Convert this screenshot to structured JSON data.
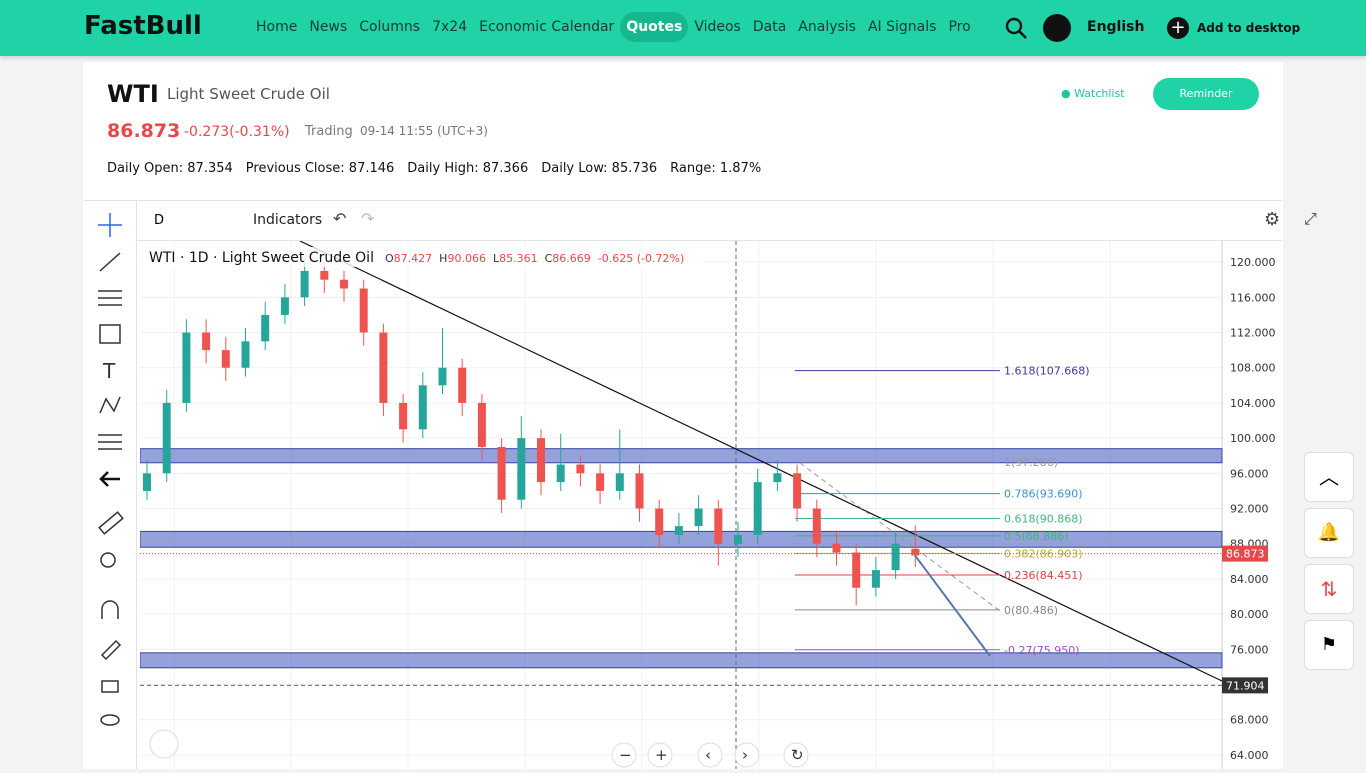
{
  "nav": {
    "logo": "FastBull",
    "items": [
      "Home",
      "News",
      "Columns",
      "7x24",
      "Economic Calendar",
      "Quotes",
      "Videos",
      "Data",
      "Analysis",
      "AI Signals",
      "Pro"
    ],
    "active": 5,
    "language": "English",
    "add": "Add to desktop"
  },
  "header": {
    "symbol": "WTI",
    "name": "Light Sweet Crude Oil",
    "price": "86.873",
    "change": "-0.273(-0.31%)",
    "status": "Trading",
    "time": "09-14 11:55 (UTC+3)",
    "watchlist": "Watchlist",
    "reminder": "Reminder",
    "stats": [
      {
        "label": "Daily Open:",
        "value": "87.354"
      },
      {
        "label": "Previous Close:",
        "value": "87.146"
      },
      {
        "label": "Daily High:",
        "value": "87.366"
      },
      {
        "label": "Daily Low:",
        "value": "85.736"
      },
      {
        "label": "Range:",
        "value": "1.87%"
      }
    ]
  },
  "toolbar": {
    "interval": "D",
    "indicators": "Indicators"
  },
  "chart_data": {
    "type": "candlestick",
    "legend_title": "WTI · 1D · Light Sweet Crude Oil",
    "ohlc_keys": [
      "O",
      "H",
      "L",
      "C"
    ],
    "change_label": "-0.625 (-0.72%)",
    "up_color": "#26a69a",
    "down_color": "#ef5350",
    "candles": [
      [
        94,
        97.5,
        93,
        96
      ],
      [
        96,
        105.5,
        95,
        104
      ],
      [
        104,
        113.5,
        103,
        112
      ],
      [
        112,
        113.5,
        108.5,
        110
      ],
      [
        110,
        111.5,
        106.5,
        108
      ],
      [
        108,
        112.5,
        107,
        111
      ],
      [
        111,
        115.5,
        110,
        114
      ],
      [
        114,
        117.5,
        113,
        116
      ],
      [
        116,
        120.5,
        115,
        119
      ],
      [
        119,
        120,
        116.5,
        118
      ],
      [
        118,
        119,
        115.5,
        117
      ],
      [
        117,
        118,
        110.5,
        112
      ],
      [
        112,
        113,
        102.5,
        104
      ],
      [
        104,
        105,
        99.5,
        101
      ],
      [
        101,
        107.5,
        100,
        106
      ],
      [
        106,
        112.5,
        105,
        108
      ],
      [
        108,
        109,
        102.5,
        104
      ],
      [
        104,
        105,
        97.5,
        99
      ],
      [
        99,
        100,
        91.5,
        93
      ],
      [
        93,
        102.5,
        92,
        100
      ],
      [
        100,
        101,
        93.5,
        95
      ],
      [
        95,
        100.5,
        94,
        97
      ],
      [
        97,
        98,
        94.5,
        96
      ],
      [
        96,
        97,
        92.5,
        94
      ],
      [
        94,
        101,
        93,
        96
      ],
      [
        96,
        97,
        90.5,
        92
      ],
      [
        92,
        93,
        87.5,
        89
      ],
      [
        89,
        91.5,
        88,
        90
      ],
      [
        90,
        93.5,
        89,
        92
      ],
      [
        92,
        93,
        85.5,
        88
      ],
      [
        88,
        90.5,
        86.5,
        89
      ],
      [
        89,
        96.5,
        88,
        95
      ],
      [
        95,
        97.5,
        94,
        96
      ],
      [
        96,
        97,
        90.5,
        92
      ],
      [
        92,
        93,
        86.5,
        88
      ],
      [
        88,
        89.5,
        85.5,
        87
      ],
      [
        87,
        88,
        81,
        83
      ],
      [
        83,
        86.5,
        82,
        85
      ],
      [
        85,
        89.5,
        84,
        88
      ],
      [
        87.427,
        90.066,
        85.361,
        86.669
      ]
    ],
    "ylim": [
      62.4,
      122.4
    ],
    "yticks": [
      {
        "value": 64,
        "label": "64.000"
      },
      {
        "value": 68,
        "label": "68.000"
      },
      {
        "value": 72,
        "label": "72.000"
      },
      {
        "value": 76,
        "label": "76.000"
      },
      {
        "value": 80,
        "label": "80.000"
      },
      {
        "value": 84,
        "label": "84.000"
      },
      {
        "value": 88,
        "label": "88.000"
      },
      {
        "value": 92,
        "label": "92.000"
      },
      {
        "value": 96,
        "label": "96.000"
      },
      {
        "value": 100,
        "label": "100.000"
      },
      {
        "value": 104,
        "label": "104.000"
      },
      {
        "value": 108,
        "label": "108.000"
      },
      {
        "value": 112,
        "label": "112.000"
      },
      {
        "value": 116,
        "label": "116.000"
      },
      {
        "value": 120,
        "label": "120.000"
      }
    ],
    "grid": true,
    "zones": [
      [
        97.2,
        98.8
      ],
      [
        87.6,
        89.4
      ],
      [
        73.9,
        75.6
      ]
    ],
    "fib": [
      {
        "label": "1.618(107.668)",
        "value": 107.668,
        "color": "#3a3aa8"
      },
      {
        "label": "1(97.286)",
        "value": 97.286,
        "color": "#999999"
      },
      {
        "label": "0.786(93.690)",
        "value": 93.69,
        "color": "#3d8fd0"
      },
      {
        "label": "0.618(90.868)",
        "value": 90.868,
        "color": "#3cb878"
      },
      {
        "label": "0.5(88.886)",
        "value": 88.886,
        "color": "#3cb878"
      },
      {
        "label": "0.382(86.903)",
        "value": 86.903,
        "color": "#b0b030"
      },
      {
        "label": "0.236(84.451)",
        "value": 84.451,
        "color": "#e04040"
      },
      {
        "label": "0(80.486)",
        "value": 80.486,
        "color": "#888888"
      },
      {
        "label": "-0.27(75.950)",
        "value": 75.95,
        "color": "#a050c0"
      }
    ],
    "last_price": {
      "value": 86.873,
      "label": "86.873"
    },
    "crosshair_price": {
      "value": 71.904,
      "label": "71.904"
    }
  }
}
